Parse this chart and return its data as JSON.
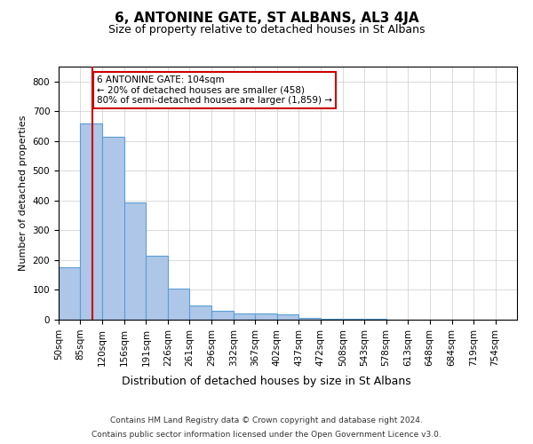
{
  "title": "6, ANTONINE GATE, ST ALBANS, AL3 4JA",
  "subtitle": "Size of property relative to detached houses in St Albans",
  "xlabel": "Distribution of detached houses by size in St Albans",
  "ylabel": "Number of detached properties",
  "footnote1": "Contains HM Land Registry data © Crown copyright and database right 2024.",
  "footnote2": "Contains public sector information licensed under the Open Government Licence v3.0.",
  "annotation_line1": "6 ANTONINE GATE: 104sqm",
  "annotation_line2": "← 20% of detached houses are smaller (458)",
  "annotation_line3": "80% of semi-detached houses are larger (1,859) →",
  "bar_color": "#aec6e8",
  "bar_edge_color": "#5a9fd4",
  "vline_color": "#cc0000",
  "vline_x": 104,
  "categories": [
    "50sqm",
    "85sqm",
    "120sqm",
    "156sqm",
    "191sqm",
    "226sqm",
    "261sqm",
    "296sqm",
    "332sqm",
    "367sqm",
    "402sqm",
    "437sqm",
    "472sqm",
    "508sqm",
    "543sqm",
    "578sqm",
    "613sqm",
    "648sqm",
    "684sqm",
    "719sqm",
    "754sqm"
  ],
  "bin_edges": [
    50,
    85,
    120,
    156,
    191,
    226,
    261,
    296,
    332,
    367,
    402,
    437,
    472,
    508,
    543,
    578,
    613,
    648,
    684,
    719,
    754,
    789
  ],
  "values": [
    175,
    660,
    615,
    395,
    215,
    105,
    48,
    30,
    22,
    20,
    18,
    6,
    3,
    3,
    3,
    1,
    0,
    0,
    1,
    0,
    1
  ],
  "ylim": [
    0,
    850
  ],
  "yticks": [
    0,
    100,
    200,
    300,
    400,
    500,
    600,
    700,
    800
  ],
  "annotation_box_color": "#ffffff",
  "annotation_box_edge": "#cc0000",
  "grid_color": "#cccccc",
  "background_color": "#ffffff",
  "title_fontsize": 11,
  "subtitle_fontsize": 9,
  "ylabel_fontsize": 8,
  "xlabel_fontsize": 9,
  "tick_fontsize": 7.5,
  "footnote_fontsize": 6.5
}
